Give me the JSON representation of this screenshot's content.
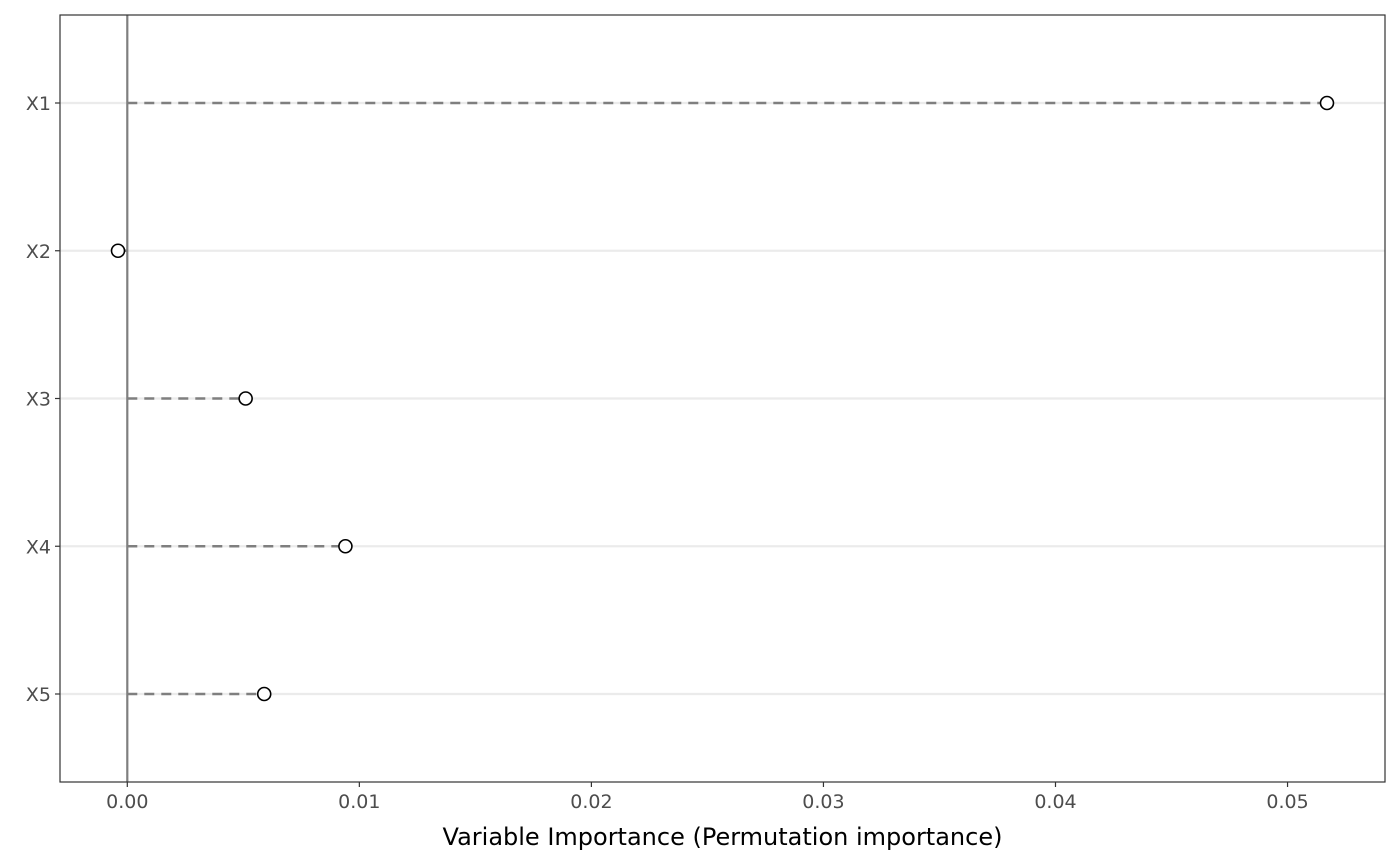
{
  "chart_data": {
    "type": "scatter",
    "title": "",
    "xlabel": "Variable Importance (Permutation importance)",
    "ylabel": "",
    "categories": [
      "X1",
      "X2",
      "X3",
      "X4",
      "X5"
    ],
    "values": [
      0.0517,
      -0.0004,
      0.0051,
      0.0094,
      0.0059
    ],
    "xlim": [
      -0.0029,
      0.0542
    ],
    "x_ticks": [
      0,
      0.01,
      0.02,
      0.03,
      0.04,
      0.05
    ],
    "x_tick_labels": [
      "0.00",
      "0.01",
      "0.02",
      "0.03",
      "0.04",
      "0.05"
    ],
    "reference_line_x": 0,
    "grid": "horizontal-major",
    "legend": "none",
    "colors": {
      "point_stroke": "#000000",
      "segment": "#7f7f7f",
      "reference_line": "#7f7f7f",
      "gridline": "#ebebeb",
      "panel_border": "#333333",
      "tick_label": "#4d4d4d"
    }
  }
}
